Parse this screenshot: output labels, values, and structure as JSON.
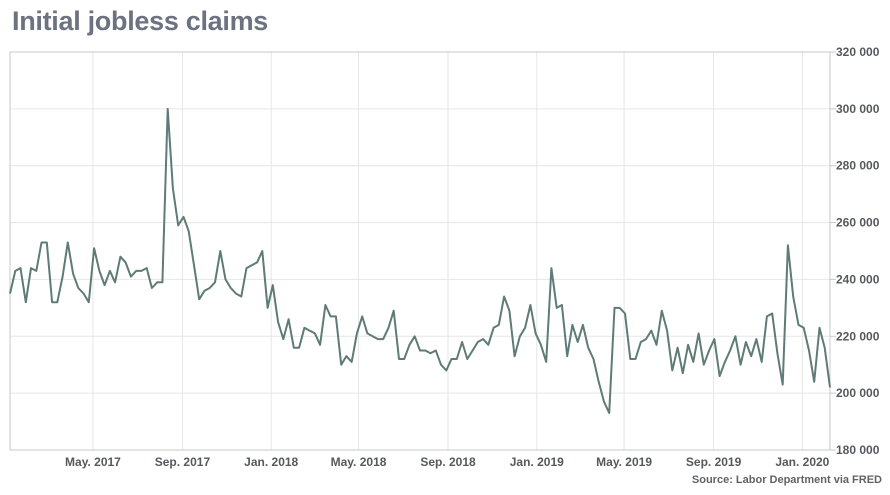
{
  "title": "Initial jobless claims",
  "source": "Source: Labor Department via FRED",
  "colors": {
    "line": "#5e7b76",
    "grid": "#e6e6e6",
    "frame": "#c8c8c8",
    "title": "#6b7280"
  },
  "chart_data": {
    "type": "line",
    "title": "Initial jobless claims",
    "xlabel": "",
    "ylabel": "",
    "grid": true,
    "ylim": [
      180000,
      320000
    ],
    "y_ticks": [
      {
        "value": 320000,
        "label": "320 000"
      },
      {
        "value": 300000,
        "label": "300 000"
      },
      {
        "value": 280000,
        "label": "280 000"
      },
      {
        "value": 260000,
        "label": "260 000"
      },
      {
        "value": 240000,
        "label": "240 000"
      },
      {
        "value": 220000,
        "label": "220 000"
      },
      {
        "value": 200000,
        "label": "200 000"
      },
      {
        "value": 180000,
        "label": "180 000"
      }
    ],
    "x_start": "2017-01-07",
    "x_end": "2020-02-08",
    "x_ticks": [
      {
        "date": "2017-05-01",
        "label": "May. 2017"
      },
      {
        "date": "2017-09-01",
        "label": "Sep. 2017"
      },
      {
        "date": "2018-01-01",
        "label": "Jan. 2018"
      },
      {
        "date": "2018-05-01",
        "label": "May. 2018"
      },
      {
        "date": "2018-09-01",
        "label": "Sep. 2018"
      },
      {
        "date": "2019-01-01",
        "label": "Jan. 2019"
      },
      {
        "date": "2019-05-01",
        "label": "May. 2019"
      },
      {
        "date": "2019-09-01",
        "label": "Sep. 2019"
      },
      {
        "date": "2020-01-01",
        "label": "Jan. 2020"
      }
    ],
    "series": [
      {
        "frequency": "weekly",
        "values": [
          235000,
          243000,
          244000,
          232000,
          244000,
          243000,
          253000,
          253000,
          232000,
          232000,
          241000,
          253000,
          242000,
          237000,
          235000,
          232000,
          251000,
          243000,
          238000,
          243000,
          239000,
          248000,
          246000,
          241000,
          243000,
          243000,
          244000,
          237000,
          239000,
          239000,
          300000,
          272000,
          259000,
          262000,
          257000,
          245000,
          233000,
          236000,
          237000,
          239000,
          250000,
          240000,
          237000,
          235000,
          234000,
          244000,
          245000,
          246000,
          250000,
          230000,
          238000,
          225000,
          219000,
          226000,
          216000,
          216000,
          223000,
          222000,
          221000,
          217000,
          231000,
          227000,
          227000,
          210000,
          213000,
          211000,
          221000,
          227000,
          221000,
          220000,
          219000,
          219000,
          223000,
          229000,
          212000,
          212000,
          217000,
          220000,
          215000,
          215000,
          214000,
          215000,
          210000,
          208000,
          212000,
          212000,
          218000,
          212000,
          215000,
          218000,
          219000,
          217000,
          223000,
          224000,
          234000,
          229000,
          213000,
          220000,
          223000,
          231000,
          221000,
          217000,
          211000,
          244000,
          230000,
          231000,
          213000,
          224000,
          218000,
          224000,
          216000,
          212000,
          204000,
          197000,
          193000,
          230000,
          230000,
          228000,
          212000,
          212000,
          218000,
          219000,
          222000,
          217000,
          229000,
          222000,
          208000,
          216000,
          207000,
          217000,
          211000,
          221000,
          210000,
          215000,
          219000,
          206000,
          211000,
          215000,
          220000,
          210000,
          218000,
          213000,
          219000,
          211000,
          227000,
          228000,
          214000,
          203000,
          252000,
          234000,
          224000,
          223000,
          215000,
          204000,
          223000,
          216000,
          202000
        ]
      }
    ]
  }
}
